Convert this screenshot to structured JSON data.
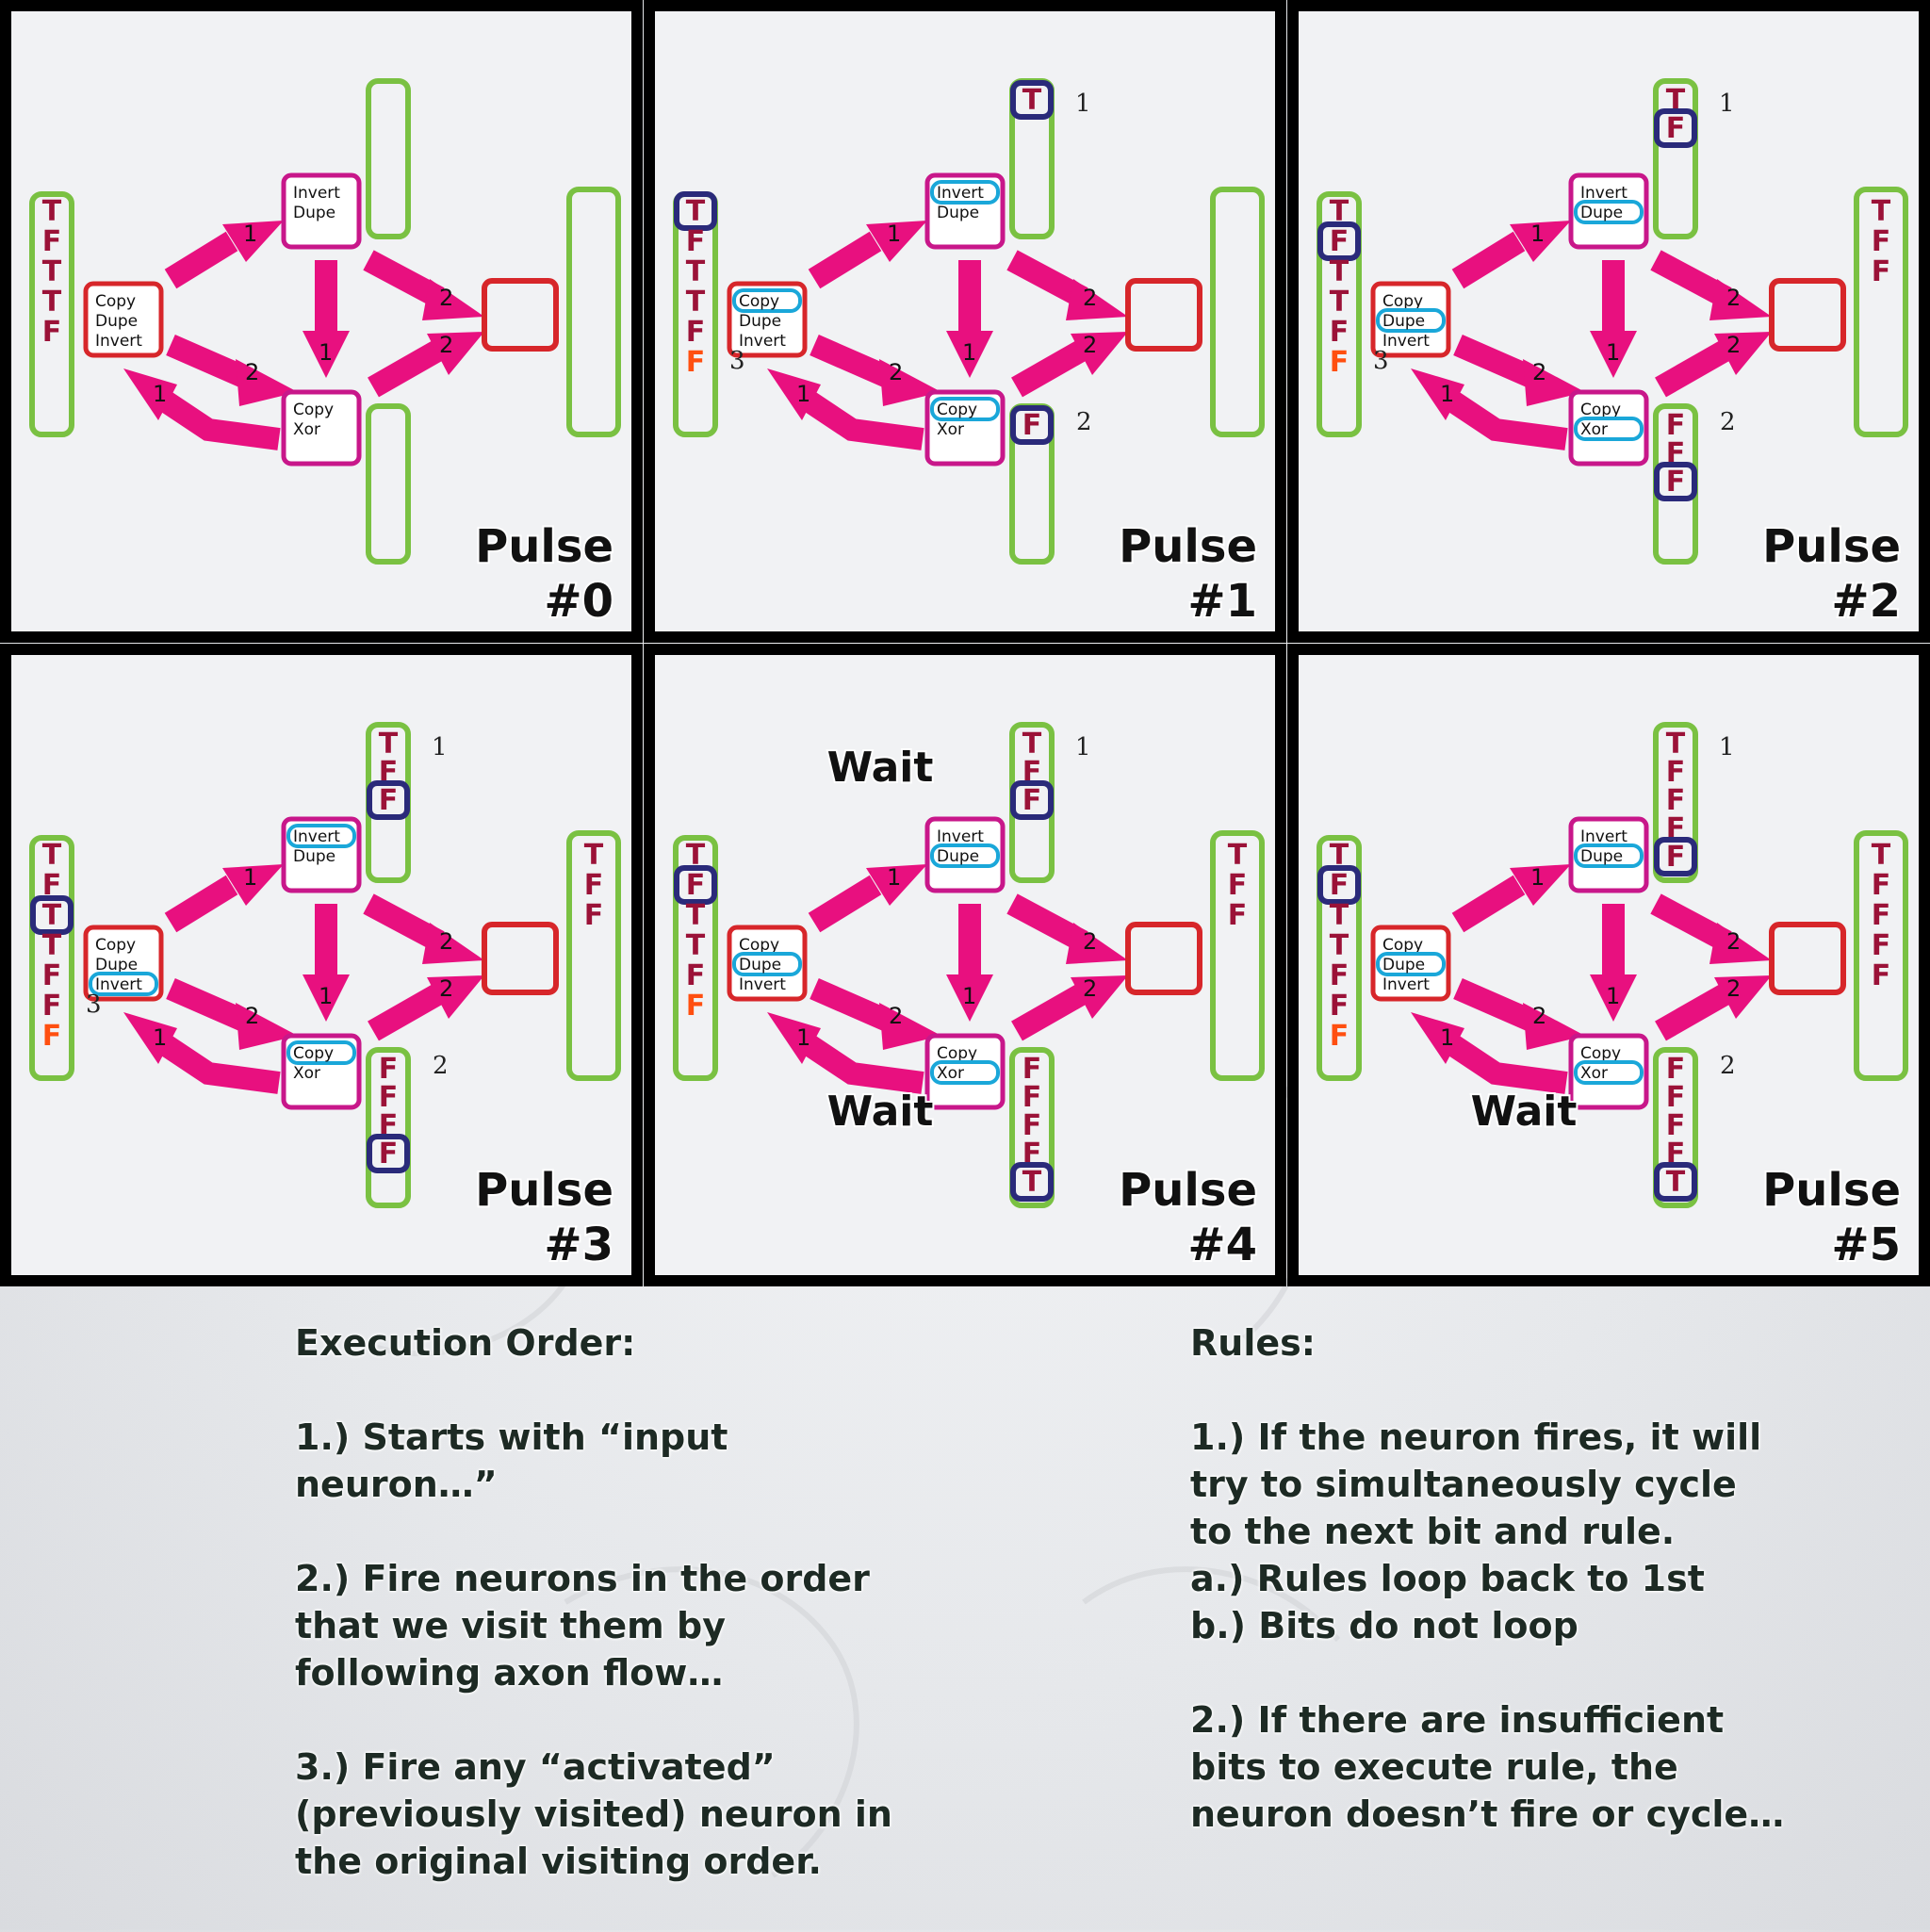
{
  "neurons": {
    "input": [
      "Copy",
      "Dupe",
      "Invert"
    ],
    "top": [
      "Invert",
      "Dupe"
    ],
    "bottom": [
      "Copy",
      "Xor"
    ]
  },
  "axon_weights": {
    "input_to_top": "1",
    "input_to_bottom": "2",
    "bottom_to_input": "1",
    "top_to_bottom": "1",
    "top_to_output": "2",
    "bottom_to_output": "2"
  },
  "panels": [
    {
      "pulse_label": "Pulse",
      "pulse_number": "#0",
      "input_bits": [
        "T",
        "F",
        "T",
        "T",
        "F"
      ],
      "top_queue_bits": [],
      "bottom_queue_bits": [],
      "output_bits": [],
      "waits": [],
      "annotations": []
    },
    {
      "pulse_label": "Pulse",
      "pulse_number": "#1",
      "input_bits": [
        "T",
        "F",
        "T",
        "T",
        "F",
        "F"
      ],
      "top_queue_bits": [
        "T"
      ],
      "bottom_queue_bits": [
        "F"
      ],
      "output_bits": [],
      "waits": [],
      "annotations": [
        "1",
        "2",
        "3"
      ]
    },
    {
      "pulse_label": "Pulse",
      "pulse_number": "#2",
      "input_bits": [
        "T",
        "F",
        "T",
        "T",
        "F",
        "F"
      ],
      "top_queue_bits": [
        "T",
        "F"
      ],
      "bottom_queue_bits": [
        "F",
        "F",
        "F"
      ],
      "output_bits": [
        "T",
        "F",
        "F"
      ],
      "waits": [],
      "annotations": [
        "1",
        "2",
        "3"
      ]
    },
    {
      "pulse_label": "Pulse",
      "pulse_number": "#3",
      "input_bits": [
        "T",
        "F",
        "T",
        "T",
        "F",
        "F",
        "F"
      ],
      "top_queue_bits": [
        "T",
        "F",
        "F"
      ],
      "bottom_queue_bits": [
        "F",
        "F",
        "F",
        "F"
      ],
      "output_bits": [
        "T",
        "F",
        "F"
      ],
      "waits": [],
      "annotations": [
        "1",
        "2",
        "3"
      ]
    },
    {
      "pulse_label": "Pulse",
      "pulse_number": "#4",
      "input_bits": [
        "T",
        "F",
        "T",
        "T",
        "F",
        "F"
      ],
      "top_queue_bits": [
        "T",
        "F",
        "F"
      ],
      "bottom_queue_bits": [
        "F",
        "F",
        "F",
        "F",
        "T"
      ],
      "output_bits": [
        "T",
        "F",
        "F"
      ],
      "waits": [
        "Wait",
        "Wait"
      ],
      "annotations": [
        "1"
      ]
    },
    {
      "pulse_label": "Pulse",
      "pulse_number": "#5",
      "input_bits": [
        "T",
        "F",
        "T",
        "T",
        "F",
        "F",
        "F"
      ],
      "top_queue_bits": [
        "T",
        "F",
        "F",
        "F",
        "F"
      ],
      "bottom_queue_bits": [
        "F",
        "F",
        "F",
        "F",
        "T"
      ],
      "output_bits": [
        "T",
        "F",
        "F",
        "F",
        "F"
      ],
      "waits": [
        "Wait"
      ],
      "annotations": [
        "1",
        "2"
      ]
    }
  ],
  "execution_order": {
    "heading": "Execution Order:",
    "items": [
      "1.) Starts with “input\nneuron…”",
      "2.) Fire neurons in the order\nthat we visit them by\nfollowing axon flow…",
      "3.) Fire any “activated”\n(previously visited) neuron in\nthe original visiting order."
    ]
  },
  "rules": {
    "heading": "Rules:",
    "items": [
      "1.) If the neuron fires, it will\ntry to simultaneously cycle\nto the next bit and rule.\n  a.) Rules loop back to 1st\n  b.) Bits do not loop",
      "2.) If there are insufficient\nbits to execute rule, the\nneuron doesn’t fire or cycle…"
    ]
  },
  "colors": {
    "axon": "#e8107f",
    "neuron_border": "#c8178a",
    "input_neuron_border": "#d7262a",
    "queue_border": "#7ac142",
    "bit_text": "#9b1238",
    "bit_highlight": "#ff4f10",
    "rule_highlight": "#1aa7d9",
    "pointer": "#2a2a7a"
  }
}
